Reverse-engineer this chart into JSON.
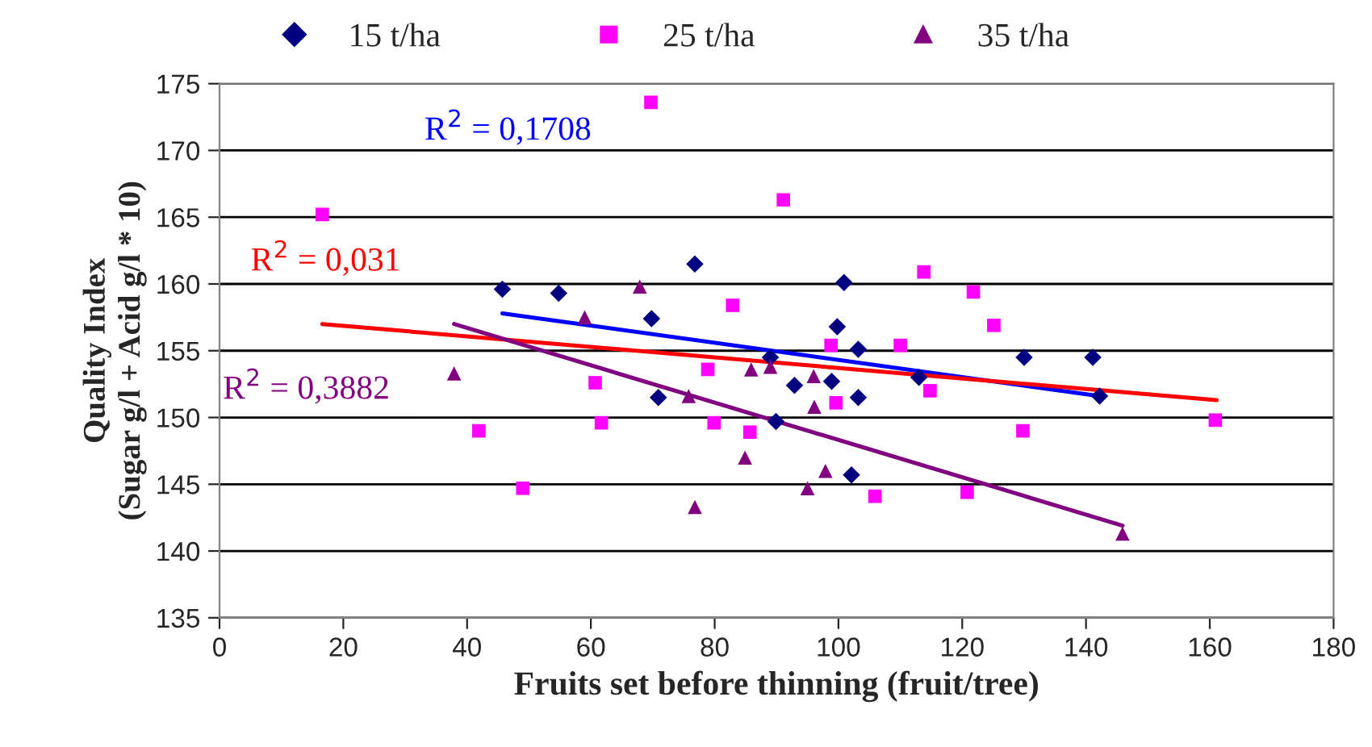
{
  "chart_data": {
    "type": "scatter",
    "xlabel": "Fruits set before thinning (fruit/tree)",
    "ylabel": "Quality Index\n(Sugar g/l + Acid g/l * 10)",
    "xlim": [
      0,
      180
    ],
    "xticks": [
      0,
      20,
      40,
      60,
      80,
      100,
      120,
      140,
      160,
      180
    ],
    "ylim": [
      135,
      175
    ],
    "yticks": [
      135,
      140,
      145,
      150,
      155,
      160,
      165,
      170,
      175
    ],
    "grid": "y",
    "legend": "top",
    "series": [
      {
        "name": "15 t/ha",
        "marker": "diamond",
        "color": "#000080",
        "x": [
          45.7,
          54.8,
          69.8,
          76.8,
          70.9,
          89.0,
          89.9,
          92.9,
          98.9,
          99.8,
          100.9,
          103.2,
          103.2,
          102.1,
          113.0,
          130.0,
          141.1,
          142.2
        ],
        "values": [
          159.6,
          159.3,
          157.4,
          161.5,
          151.5,
          154.5,
          149.7,
          152.4,
          152.7,
          156.8,
          160.1,
          155.1,
          151.5,
          145.7,
          153.0,
          154.5,
          154.5,
          151.6
        ]
      },
      {
        "name": "25 t/ha",
        "marker": "square",
        "color": "#ff00ff",
        "x": [
          16.6,
          69.7,
          41.9,
          49.0,
          60.7,
          61.7,
          82.9,
          78.9,
          79.9,
          85.7,
          91.1,
          98.8,
          99.6,
          105.9,
          110.0,
          113.8,
          114.8,
          121.8,
          125.1,
          120.8,
          129.8,
          160.9
        ],
        "values": [
          165.2,
          173.6,
          149.0,
          144.7,
          152.6,
          149.6,
          158.4,
          153.6,
          149.6,
          148.9,
          166.3,
          155.4,
          151.1,
          144.1,
          155.4,
          160.9,
          152.0,
          159.4,
          156.9,
          144.4,
          149.0,
          149.8
        ]
      },
      {
        "name": "35 t/ha",
        "marker": "triangle",
        "color": "#800080",
        "x": [
          37.9,
          59.0,
          67.9,
          75.8,
          85.9,
          84.9,
          76.8,
          89.0,
          96.0,
          96.1,
          95.0,
          97.9,
          145.9
        ],
        "values": [
          153.3,
          157.5,
          159.8,
          151.6,
          153.6,
          147.0,
          143.3,
          153.8,
          153.1,
          150.8,
          144.7,
          146.0,
          141.3
        ]
      },
      {
        "type": "line",
        "color": "#0000ff",
        "x": [
          45.7,
          142.2
        ],
        "values": [
          157.8,
          151.6
        ]
      },
      {
        "type": "line",
        "color": "#ff0000",
        "x": [
          16.6,
          161.1
        ],
        "values": [
          157.0,
          151.3
        ]
      },
      {
        "type": "line",
        "color": "#800080",
        "x": [
          37.9,
          145.9
        ],
        "values": [
          157.0,
          141.9
        ]
      }
    ],
    "annotations": [
      "R$^{2}$ = 0,1708",
      "R$^{2}$ = 0,031",
      "R$^{2}$ = 0,3882"
    ]
  }
}
